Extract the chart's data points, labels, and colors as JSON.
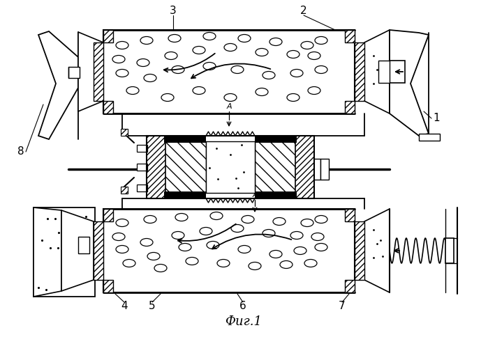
{
  "title": "Фиг.1",
  "bg": "#ffffff",
  "lc": "#000000",
  "fw": 6.99,
  "fh": 4.84,
  "dpi": 100
}
